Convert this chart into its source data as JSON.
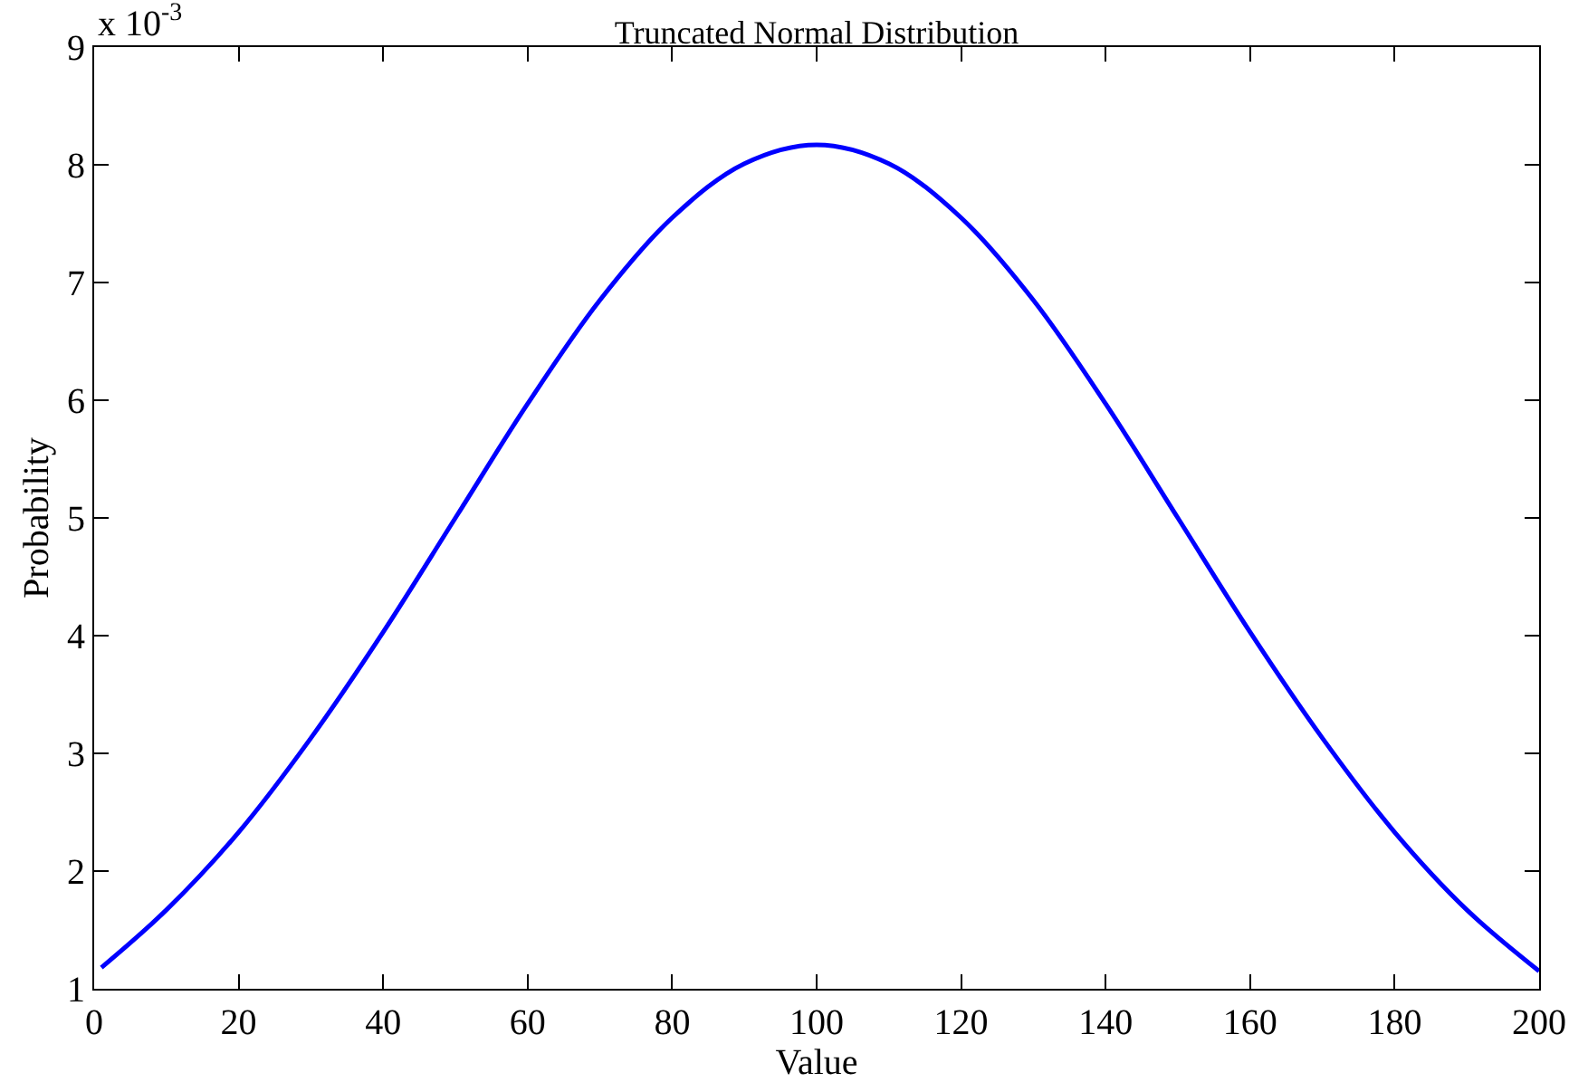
{
  "chart_data": {
    "type": "line",
    "title": "Truncated Normal Distribution",
    "xlabel": "Value",
    "ylabel": "Probability",
    "annotations": [
      "x 10$^{-3}$"
    ],
    "x": [
      1,
      10,
      20,
      30,
      40,
      50,
      60,
      70,
      80,
      90,
      100,
      110,
      120,
      130,
      140,
      150,
      160,
      170,
      180,
      190,
      200
    ],
    "series": [
      {
        "color": "#0000ff",
        "values": [
          1.18,
          1.67,
          2.33,
          3.13,
          4.03,
          5.0,
          5.97,
          6.85,
          7.55,
          8.01,
          8.17,
          8.01,
          7.55,
          6.85,
          5.97,
          5.0,
          4.03,
          3.13,
          2.33,
          1.67,
          1.15
        ]
      }
    ],
    "xlim": [
      0,
      200
    ],
    "xticks": [
      0,
      20,
      40,
      60,
      80,
      100,
      120,
      140,
      160,
      180,
      200
    ],
    "ylim": [
      1,
      9
    ],
    "yticks": [
      1,
      2,
      3,
      4,
      5,
      6,
      7,
      8,
      9
    ],
    "legend": false,
    "marker": "none",
    "line_style": "solid"
  }
}
